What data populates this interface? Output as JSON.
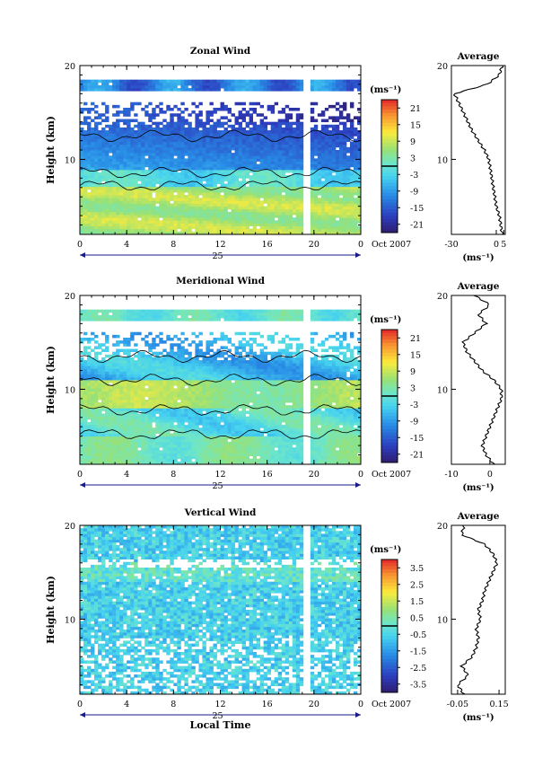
{
  "chart_data": [
    {
      "type": "heatmap",
      "title": "Zonal Wind",
      "ylabel": "Height (km)",
      "xlabel": "",
      "x_ticks": [
        "0",
        "4",
        "8",
        "12",
        "16",
        "20",
        "0"
      ],
      "day_label": "25",
      "date_label": "Oct 2007",
      "y_ticks": [
        "10",
        "20"
      ],
      "xlim": [
        0,
        24
      ],
      "ylim": [
        2,
        20
      ],
      "gap_hour": 19.3,
      "colorbar": {
        "unit": "(ms⁻¹)",
        "ticks": [
          "21",
          "15",
          "9",
          "3",
          "-3",
          "-9",
          "-15",
          "-21"
        ],
        "vmin": -24,
        "vmax": 24
      },
      "profile": {
        "title": "Average",
        "xlabel": "(ms⁻¹)",
        "x_ticks": [
          "-30",
          "0",
          "5"
        ],
        "xlim": [
          -30,
          6
        ],
        "y_ticks": [
          "10",
          "20"
        ],
        "heights": [
          2,
          3,
          4,
          5,
          6,
          7,
          8,
          9,
          10,
          11,
          12,
          13,
          14,
          15,
          16,
          17,
          18,
          19,
          20
        ],
        "values": [
          4,
          3,
          2,
          0,
          -1,
          -2,
          -3,
          -4,
          -5,
          -8,
          -12,
          -16,
          -19,
          -22,
          -25,
          -28,
          -6,
          2,
          4
        ]
      }
    },
    {
      "type": "heatmap",
      "title": "Meridional Wind",
      "ylabel": "Height (km)",
      "xlabel": "",
      "x_ticks": [
        "0",
        "4",
        "8",
        "12",
        "16",
        "20",
        "0"
      ],
      "day_label": "25",
      "date_label": "Oct 2007",
      "y_ticks": [
        "10",
        "20"
      ],
      "xlim": [
        0,
        24
      ],
      "ylim": [
        2,
        20
      ],
      "gap_hour": 19.3,
      "colorbar": {
        "unit": "(ms⁻¹)",
        "ticks": [
          "21",
          "15",
          "9",
          "3",
          "-3",
          "-9",
          "-15",
          "-21"
        ],
        "vmin": -24,
        "vmax": 24
      },
      "profile": {
        "title": "Average",
        "xlabel": "(ms⁻¹)",
        "x_ticks": [
          "-10",
          "0"
        ],
        "xlim": [
          -10,
          4
        ],
        "y_ticks": [
          "10",
          "20"
        ],
        "heights": [
          2,
          3,
          4,
          5,
          6,
          7,
          8,
          9,
          10,
          11,
          12,
          13,
          14,
          15,
          16,
          17,
          18,
          19,
          20
        ],
        "values": [
          1,
          -1,
          -2,
          -1,
          0,
          1,
          2,
          3,
          3,
          1,
          -2,
          -4,
          -6,
          -7,
          -4,
          -1,
          -3,
          0,
          -4
        ]
      }
    },
    {
      "type": "heatmap",
      "title": "Vertical Wind",
      "ylabel": "Height (km)",
      "xlabel": "Local Time",
      "x_ticks": [
        "0",
        "4",
        "8",
        "12",
        "16",
        "20",
        "0"
      ],
      "day_label": "25",
      "date_label": "Oct 2007",
      "y_ticks": [
        "10",
        "20"
      ],
      "xlim": [
        0,
        24
      ],
      "ylim": [
        2,
        20
      ],
      "gap_hour": 19.3,
      "colorbar": {
        "unit": "(ms⁻¹)",
        "ticks": [
          "3.5",
          "2.5",
          "1.5",
          "0.5",
          "-0.5",
          "-1.5",
          "-2.5",
          "-3.5"
        ],
        "vmin": -4,
        "vmax": 4
      },
      "profile": {
        "title": "Average",
        "xlabel": "(ms⁻¹)",
        "x_ticks": [
          "-0.05",
          "0.15"
        ],
        "xlim": [
          -0.08,
          0.18
        ],
        "y_ticks": [
          "10",
          "20"
        ],
        "heights": [
          2,
          3,
          4,
          5,
          6,
          7,
          8,
          9,
          10,
          11,
          12,
          13,
          14,
          15,
          16,
          17,
          18,
          19,
          20
        ],
        "values": [
          -0.02,
          -0.05,
          0.0,
          -0.03,
          0.02,
          0.04,
          0.05,
          0.04,
          0.06,
          0.05,
          0.07,
          0.08,
          0.1,
          0.12,
          0.14,
          0.12,
          0.08,
          -0.03,
          -0.02
        ]
      }
    }
  ]
}
